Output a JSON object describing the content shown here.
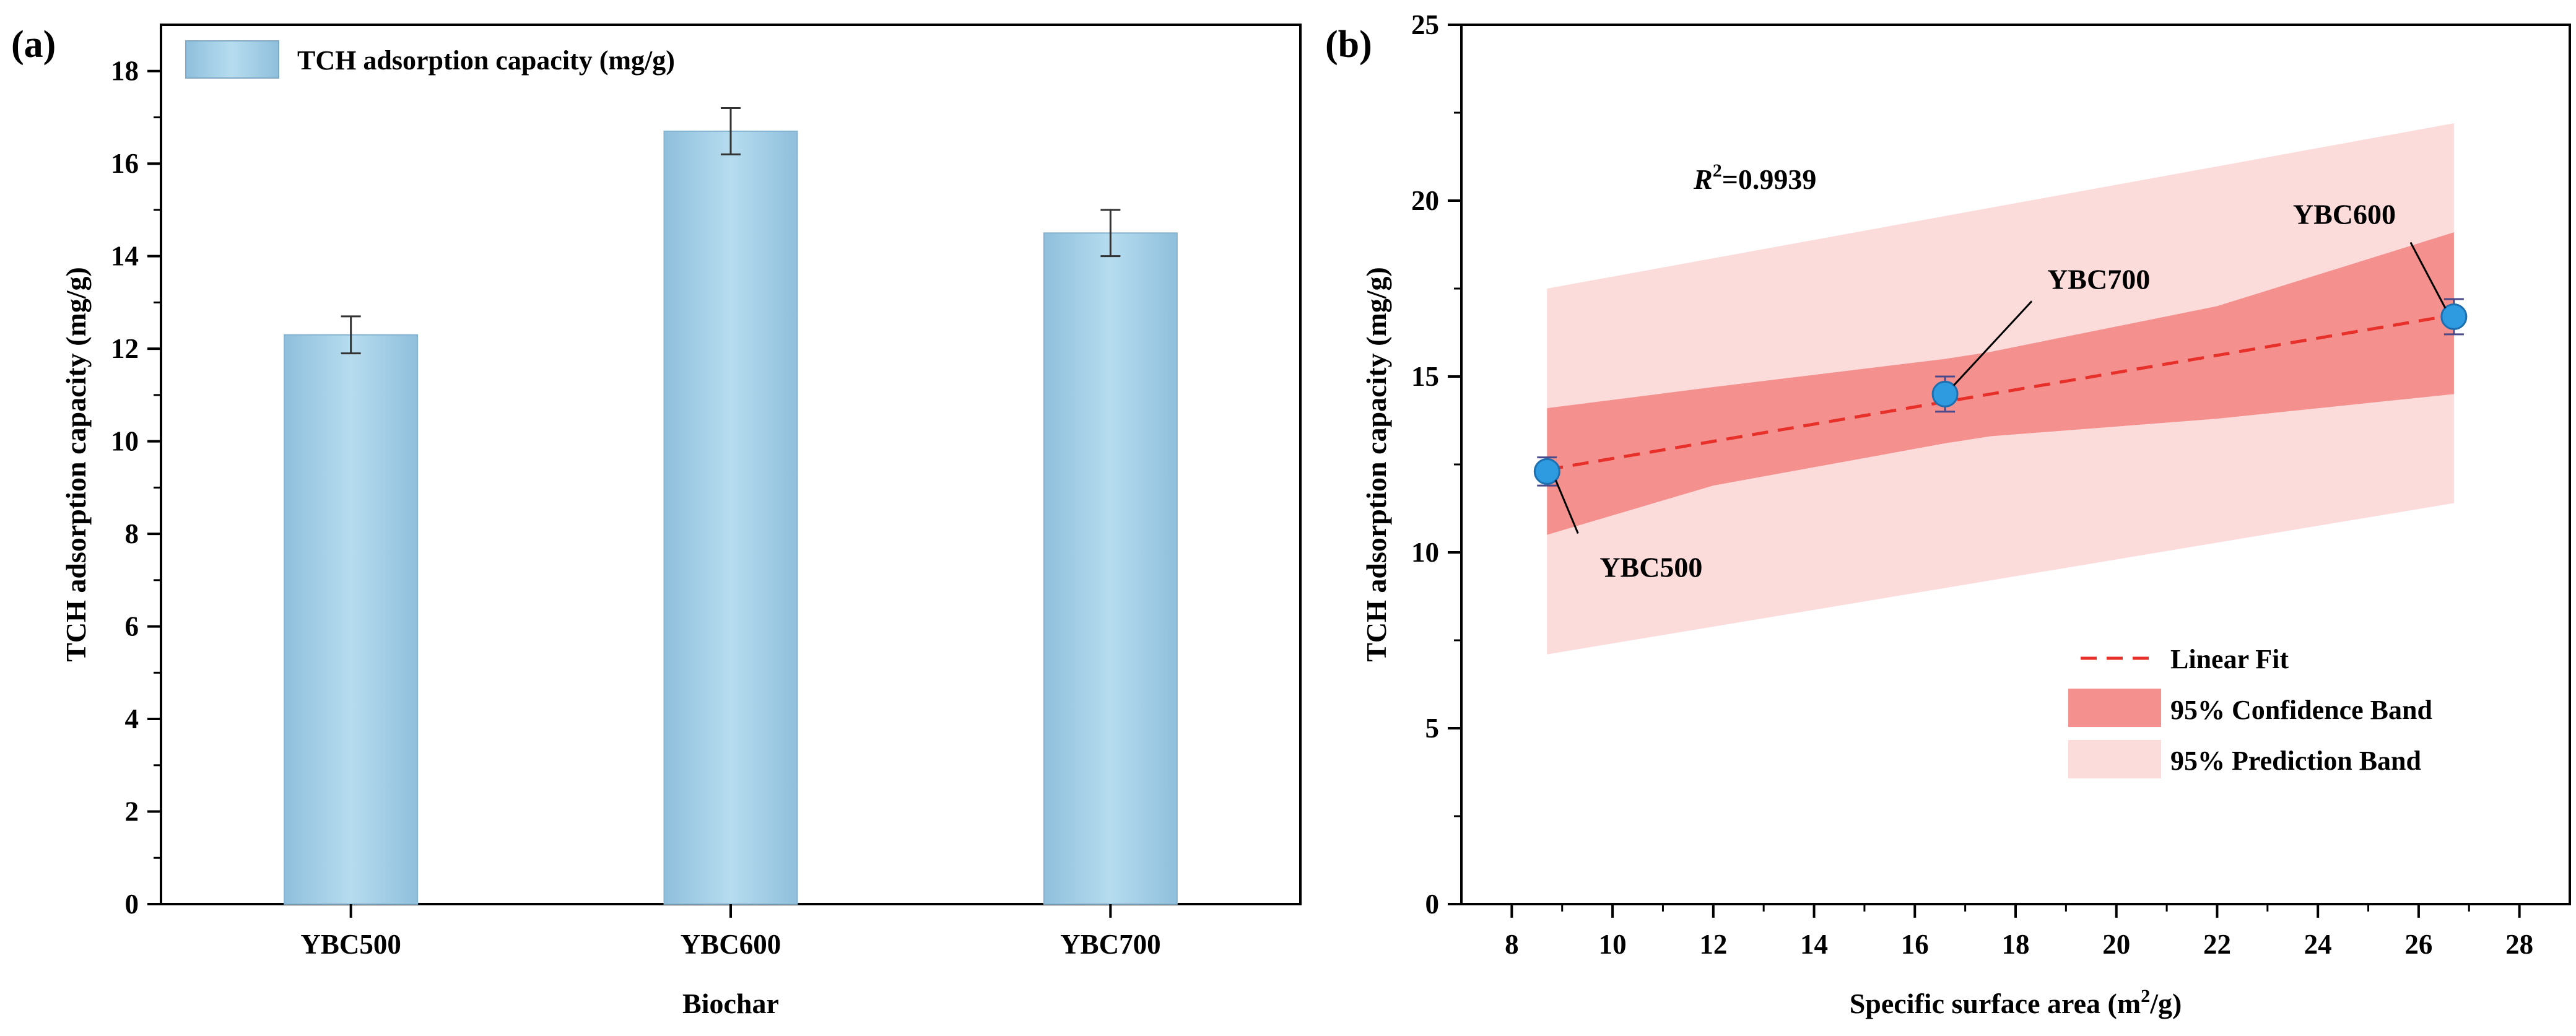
{
  "chart_data": [
    {
      "panel": "(a)",
      "type": "bar",
      "categories": [
        "YBC500",
        "YBC600",
        "YBC700"
      ],
      "series": [
        {
          "name": "TCH adsorption capacity (mg/g)",
          "values": [
            12.3,
            16.7,
            14.5
          ],
          "errors": [
            0.4,
            0.5,
            0.5
          ],
          "color": "#a8cfe6"
        }
      ],
      "xlabel": "Biochar",
      "ylabel": "TCH adsorption capacity (mg/g)",
      "ylim": [
        0,
        19
      ],
      "yticks": [
        0,
        2,
        4,
        6,
        8,
        10,
        12,
        14,
        16,
        18
      ],
      "legend": "top-left",
      "grid": false
    },
    {
      "panel": "(b)",
      "type": "scatter",
      "points": [
        {
          "label": "YBC500",
          "x": 8.7,
          "y": 12.3,
          "err": 0.4
        },
        {
          "label": "YBC700",
          "x": 16.6,
          "y": 14.5,
          "err": 0.5
        },
        {
          "label": "YBC600",
          "x": 26.7,
          "y": 16.7,
          "err": 0.5
        }
      ],
      "fit": {
        "name": "Linear Fit",
        "x": [
          8.7,
          26.7
        ],
        "y": [
          12.35,
          16.75
        ],
        "color": "#e8302a"
      },
      "confidence_band": {
        "name": "95% Confidence Band",
        "x": [
          8.7,
          12,
          16.6,
          17.5,
          22,
          26.7
        ],
        "upper": [
          14.1,
          14.7,
          15.5,
          15.7,
          17.0,
          19.1
        ],
        "lower": [
          10.5,
          11.9,
          13.1,
          13.3,
          13.8,
          14.5
        ],
        "color": "#f4908d"
      },
      "prediction_band": {
        "name": "95% Prediction Band",
        "x": [
          8.7,
          26.7
        ],
        "upper": [
          17.5,
          22.2
        ],
        "lower": [
          7.1,
          11.4
        ],
        "color": "#fbdcdb"
      },
      "annotation": {
        "text": "R",
        "sup": "2",
        "tail": "=0.9939"
      },
      "xlabel_main": "Specific surface area (m",
      "xlabel_sup": "2",
      "xlabel_tail": "/g)",
      "ylabel": "TCH adsorption capacity (mg/g)",
      "xlim": [
        7,
        29
      ],
      "ylim": [
        0,
        25
      ],
      "xticks": [
        8,
        10,
        12,
        14,
        16,
        18,
        20,
        22,
        24,
        26,
        28
      ],
      "yticks": [
        0,
        5,
        10,
        15,
        20,
        25
      ],
      "legend": "bottom-right",
      "grid": false
    }
  ]
}
